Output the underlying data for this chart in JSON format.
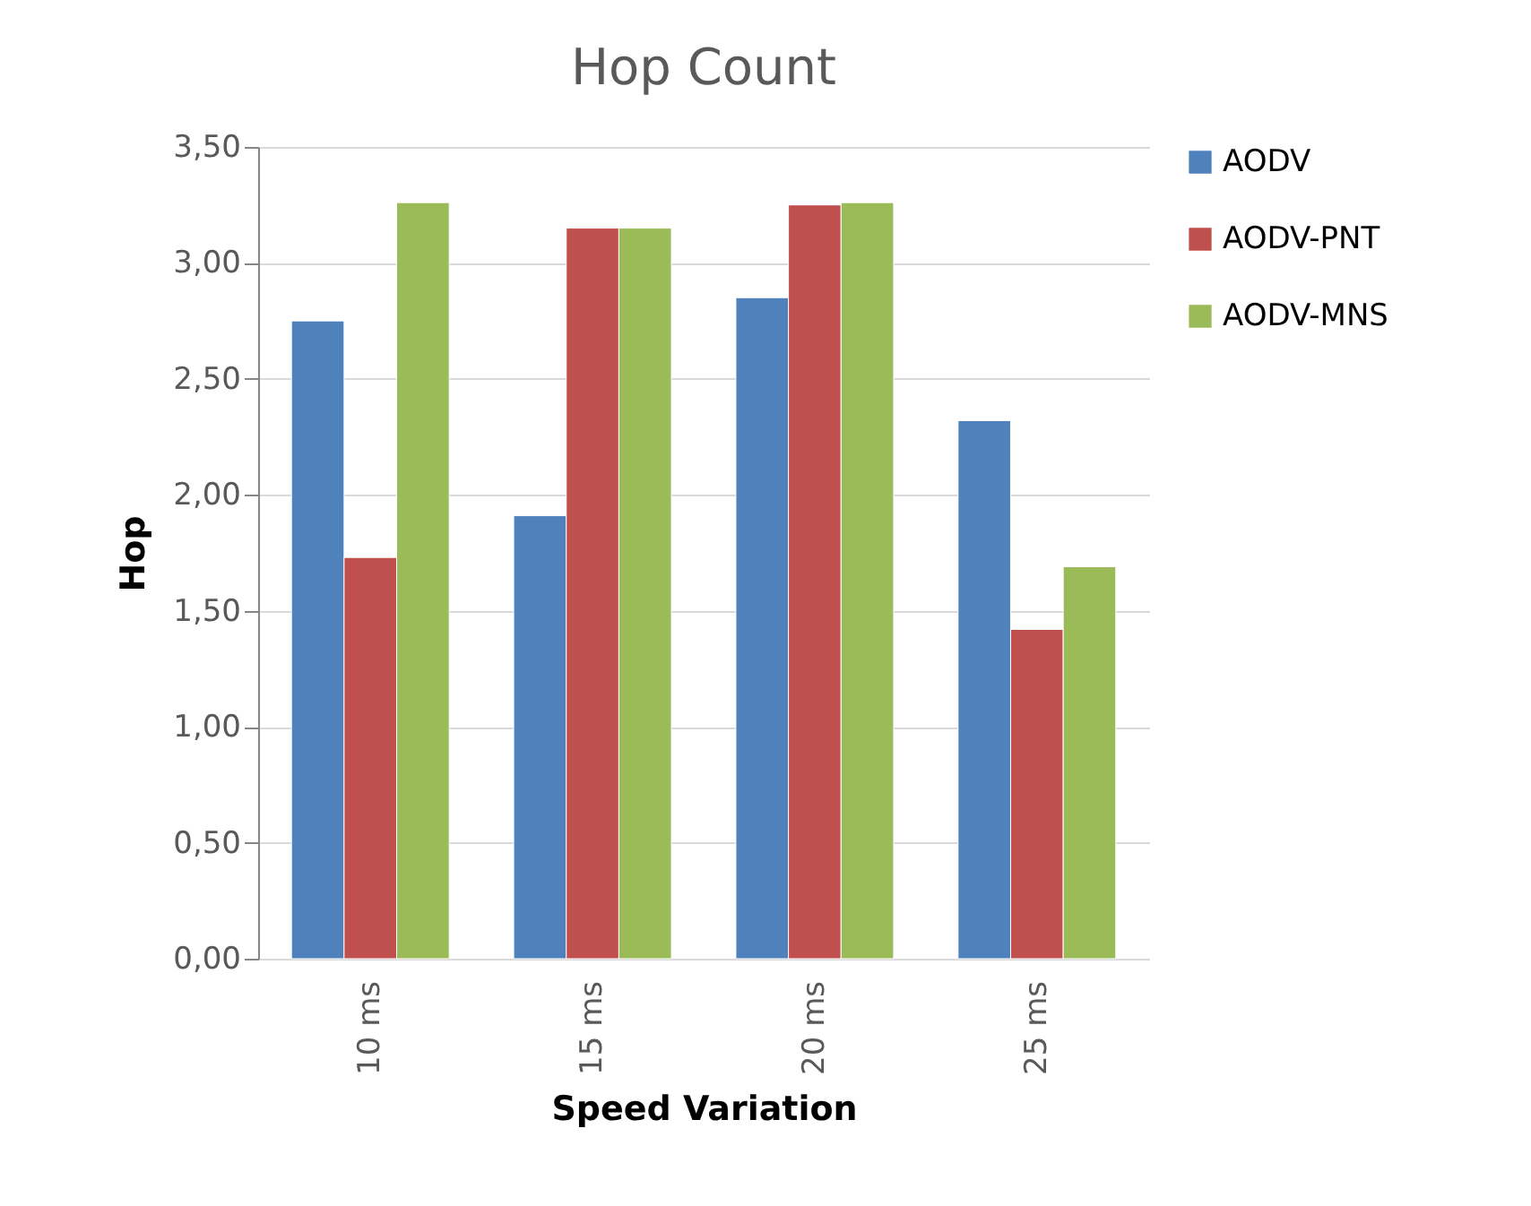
{
  "chart_data": {
    "type": "bar",
    "title": "Hop Count",
    "xlabel": "Speed Variation",
    "ylabel": "Hop",
    "categories": [
      "10 ms",
      "15 ms",
      "20 ms",
      "25 ms"
    ],
    "series": [
      {
        "name": "AODV",
        "color": "#4f81bd",
        "values": [
          2.75,
          1.91,
          2.85,
          2.32
        ]
      },
      {
        "name": "AODV-PNT",
        "color": "#c0504d",
        "values": [
          1.73,
          3.15,
          3.25,
          1.42
        ]
      },
      {
        "name": "AODV-MNS",
        "color": "#9bbb59",
        "values": [
          3.26,
          3.15,
          3.26,
          1.69
        ]
      }
    ],
    "ylim": [
      0,
      3.5
    ],
    "yticks": [
      {
        "value": 0,
        "label": "0,00"
      },
      {
        "value": 0.5,
        "label": "0,50"
      },
      {
        "value": 1,
        "label": "1,00"
      },
      {
        "value": 1.5,
        "label": "1,50"
      },
      {
        "value": 2,
        "label": "2,00"
      },
      {
        "value": 2.5,
        "label": "2,50"
      },
      {
        "value": 3,
        "label": "3,00"
      },
      {
        "value": 3.5,
        "label": "3,50"
      }
    ],
    "grid": "y",
    "legend": "right"
  }
}
